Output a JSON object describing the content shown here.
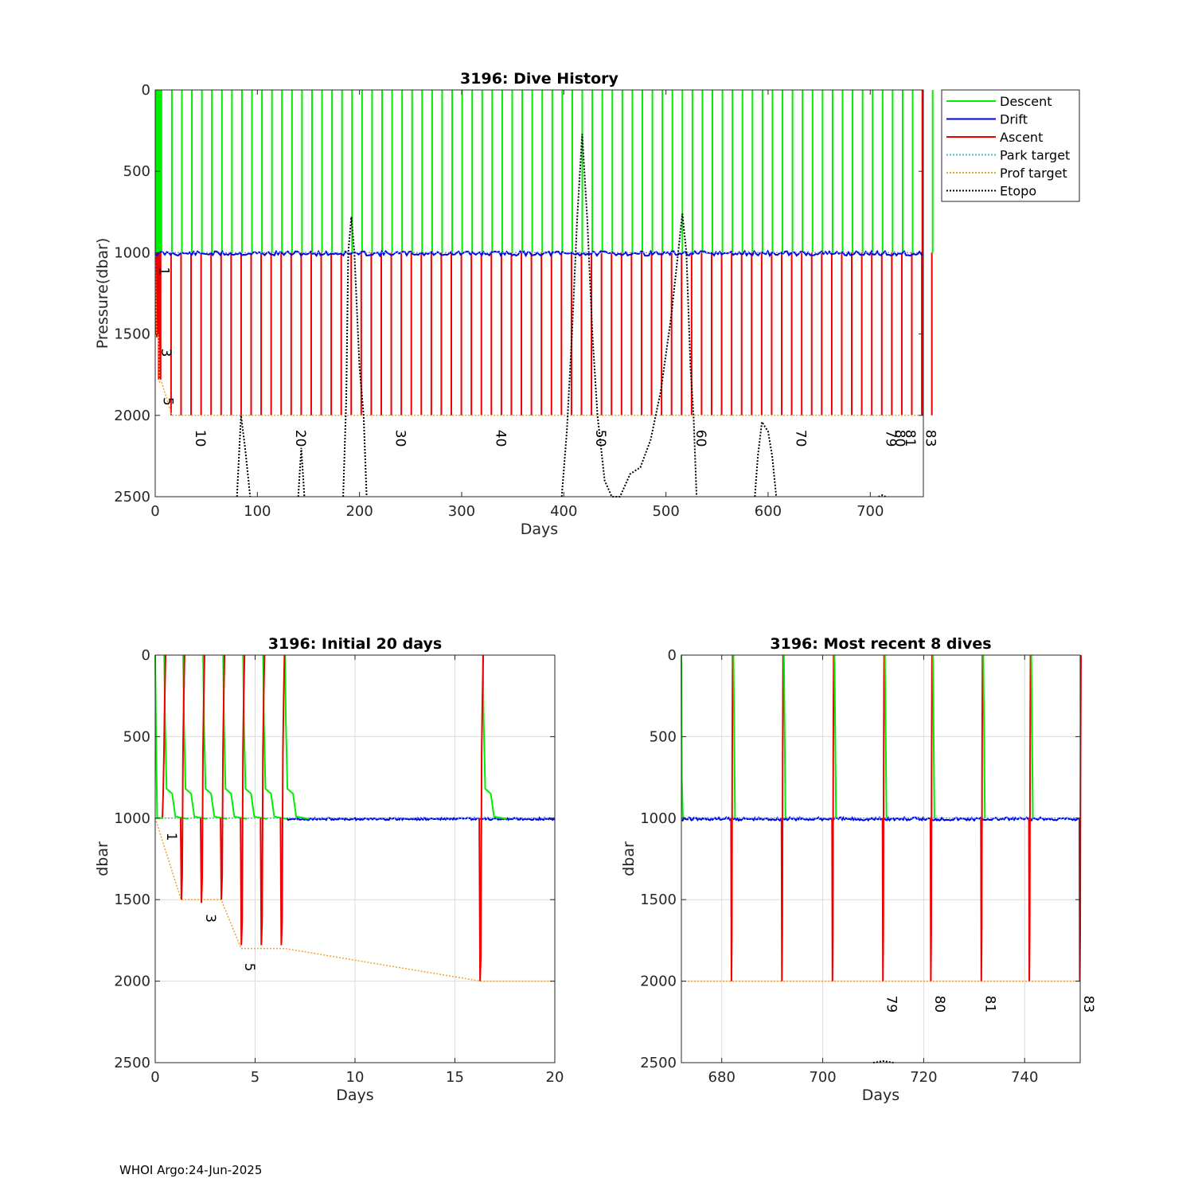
{
  "colors": {
    "descent": "#00ee00",
    "drift": "#0000ee",
    "ascent": "#ee0000",
    "park": "#4db8d6",
    "prof": "#f0a030",
    "etopo": "#000000",
    "grid": "#dcdcdc"
  },
  "footer": "WHOI Argo:24-Jun-2025",
  "chart_data": [
    {
      "type": "line",
      "title": "3196: Dive History",
      "xlabel": "Days",
      "ylabel": "Pressure(dbar)",
      "xlim": [
        0,
        752
      ],
      "ylim": [
        0,
        2500
      ],
      "y_reversed": true,
      "xticks": [
        0,
        100,
        200,
        300,
        400,
        500,
        600,
        700
      ],
      "yticks": [
        0,
        500,
        1000,
        1500,
        2000,
        2500
      ],
      "legend": {
        "placement": "outside-top-right",
        "entries": [
          "Descent",
          "Drift",
          "Ascent",
          "Park target",
          "Prof target",
          "Etopo"
        ]
      },
      "park_target": 1000,
      "prof_target": [
        [
          0,
          1000
        ],
        [
          1.3,
          1500
        ],
        [
          3.3,
          1500
        ],
        [
          4.3,
          1800
        ],
        [
          6.5,
          1800
        ],
        [
          16.3,
          2000
        ],
        [
          752,
          2000
        ]
      ],
      "cycle_labels": [
        {
          "label": "1",
          "day": 0.5,
          "pressure": 1000
        },
        {
          "label": "3",
          "day": 2.3,
          "pressure": 1500
        },
        {
          "label": "5",
          "day": 4.3,
          "pressure": 1800
        },
        {
          "label": "10",
          "day": 36,
          "pressure": 2000
        },
        {
          "label": "20",
          "day": 134,
          "pressure": 2000
        },
        {
          "label": "30",
          "day": 232,
          "pressure": 2000
        },
        {
          "label": "40",
          "day": 330,
          "pressure": 2000
        },
        {
          "label": "50",
          "day": 428,
          "pressure": 2000
        },
        {
          "label": "60",
          "day": 526,
          "pressure": 2000
        },
        {
          "label": "70",
          "day": 624,
          "pressure": 2000
        },
        {
          "label": "79",
          "day": 712,
          "pressure": 2000
        },
        {
          "label": "80",
          "day": 721,
          "pressure": 2000
        },
        {
          "label": "81",
          "day": 731,
          "pressure": 2000
        },
        {
          "label": "83",
          "day": 751,
          "pressure": 2000
        }
      ],
      "etopo": [
        [
          80,
          2500
        ],
        [
          84,
          2000
        ],
        [
          88,
          2200
        ],
        [
          93,
          2500
        ],
        [
          140,
          2500
        ],
        [
          143,
          2200
        ],
        [
          146,
          2500
        ],
        [
          184,
          2500
        ],
        [
          187,
          1900
        ],
        [
          189,
          1000
        ],
        [
          192,
          780
        ],
        [
          195,
          1000
        ],
        [
          200,
          1700
        ],
        [
          204,
          2000
        ],
        [
          207,
          2500
        ],
        [
          398,
          2500
        ],
        [
          403,
          2100
        ],
        [
          408,
          1500
        ],
        [
          413,
          800
        ],
        [
          418,
          270
        ],
        [
          423,
          800
        ],
        [
          428,
          1500
        ],
        [
          433,
          2000
        ],
        [
          440,
          2400
        ],
        [
          447,
          2500
        ],
        [
          455,
          2500
        ],
        [
          465,
          2360
        ],
        [
          475,
          2320
        ],
        [
          485,
          2150
        ],
        [
          495,
          1850
        ],
        [
          505,
          1400
        ],
        [
          512,
          1000
        ],
        [
          516,
          760
        ],
        [
          520,
          1000
        ],
        [
          524,
          1700
        ],
        [
          527,
          2000
        ],
        [
          530,
          2500
        ],
        [
          587,
          2500
        ],
        [
          590,
          2250
        ],
        [
          594,
          2040
        ],
        [
          600,
          2100
        ],
        [
          604,
          2250
        ],
        [
          608,
          2500
        ],
        [
          708,
          2500
        ],
        [
          712,
          2490
        ],
        [
          715,
          2500
        ]
      ]
    },
    {
      "type": "line",
      "title": "3196: Initial 20 days",
      "xlabel": "Days",
      "ylabel": "dbar",
      "xlim": [
        0,
        20
      ],
      "ylim": [
        0,
        2500
      ],
      "y_reversed": true,
      "xticks": [
        0,
        5,
        10,
        15,
        20
      ],
      "yticks": [
        0,
        500,
        1000,
        1500,
        2000,
        2500
      ],
      "park_target": 1000,
      "prof_target": [
        [
          0,
          1000
        ],
        [
          1.3,
          1500
        ],
        [
          3.3,
          1500
        ],
        [
          4.3,
          1800
        ],
        [
          6.5,
          1800
        ],
        [
          16.3,
          2000
        ],
        [
          20,
          2000
        ]
      ],
      "dives": [
        {
          "surface_day": 0.45,
          "profile_day": 0.4,
          "max_pressure": 1000
        },
        {
          "surface_day": 1.4,
          "profile_day": 1.35,
          "max_pressure": 1500
        },
        {
          "surface_day": 2.4,
          "profile_day": 2.35,
          "max_pressure": 1520
        },
        {
          "surface_day": 3.4,
          "profile_day": 3.35,
          "max_pressure": 1500
        },
        {
          "surface_day": 4.4,
          "profile_day": 4.35,
          "max_pressure": 1780
        },
        {
          "surface_day": 5.4,
          "profile_day": 5.35,
          "max_pressure": 1780
        },
        {
          "surface_day": 6.5,
          "profile_day": 6.35,
          "max_pressure": 1780
        },
        {
          "surface_day": 16.4,
          "profile_day": 16.3,
          "max_pressure": 2000
        }
      ],
      "cycle_labels": [
        {
          "label": "1",
          "day": 0.4,
          "pressure": 1000
        },
        {
          "label": "3",
          "day": 2.35,
          "pressure": 1500
        },
        {
          "label": "5",
          "day": 4.3,
          "pressure": 1800
        }
      ]
    },
    {
      "type": "line",
      "title": "3196: Most recent 8 dives",
      "xlabel": "Days",
      "ylabel": "dbar",
      "xlim": [
        672,
        751
      ],
      "ylim": [
        0,
        2500
      ],
      "y_reversed": true,
      "xticks": [
        680,
        700,
        720,
        740
      ],
      "yticks": [
        0,
        500,
        1000,
        1500,
        2000,
        2500
      ],
      "park_target": 1000,
      "prof_target": [
        [
          672,
          2000
        ],
        [
          751,
          2000
        ]
      ],
      "dives": [
        {
          "profile_day": 682,
          "max_pressure": 2000
        },
        {
          "profile_day": 692,
          "max_pressure": 2000
        },
        {
          "profile_day": 702,
          "max_pressure": 2000
        },
        {
          "profile_day": 712,
          "max_pressure": 2000
        },
        {
          "profile_day": 721.5,
          "max_pressure": 2000
        },
        {
          "profile_day": 731.5,
          "max_pressure": 2000
        },
        {
          "profile_day": 741,
          "max_pressure": 2000
        },
        {
          "profile_day": 751,
          "max_pressure": 2000
        }
      ],
      "cycle_labels": [
        {
          "label": "79",
          "day": 712,
          "pressure": 2000
        },
        {
          "label": "80",
          "day": 721.5,
          "pressure": 2000
        },
        {
          "label": "81",
          "day": 731.5,
          "pressure": 2000
        },
        {
          "label": "83",
          "day": 751,
          "pressure": 2000
        }
      ],
      "etopo": [
        [
          710,
          2500
        ],
        [
          712,
          2490
        ],
        [
          714,
          2500
        ]
      ]
    }
  ]
}
